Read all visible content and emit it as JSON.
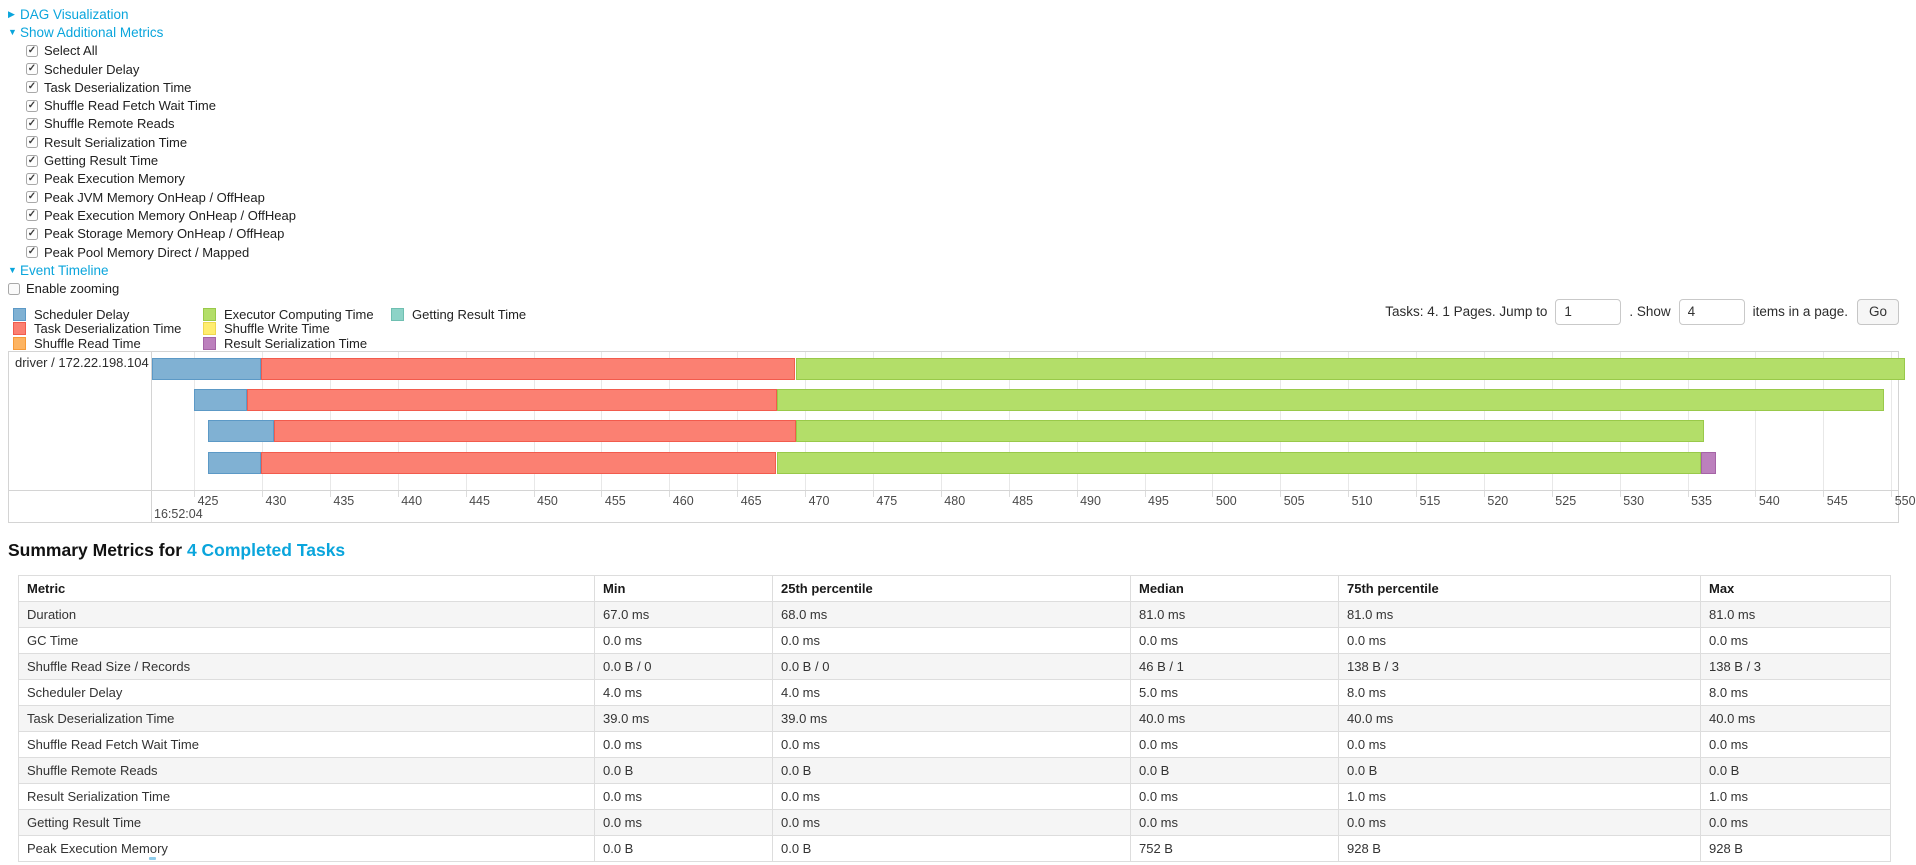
{
  "controls": {
    "dag": {
      "label": "DAG Visualization",
      "state": "collapsed"
    },
    "metrics_toggle": {
      "label": "Show Additional Metrics",
      "state": "expanded"
    },
    "metric_checkboxes": [
      "Select All",
      "Scheduler Delay",
      "Task Deserialization Time",
      "Shuffle Read Fetch Wait Time",
      "Shuffle Remote Reads",
      "Result Serialization Time",
      "Getting Result Time",
      "Peak Execution Memory",
      "Peak JVM Memory OnHeap / OffHeap",
      "Peak Execution Memory OnHeap / OffHeap",
      "Peak Storage Memory OnHeap / OffHeap",
      "Peak Pool Memory Direct / Mapped"
    ],
    "metric_checkboxes_checked": true,
    "event_timeline": {
      "label": "Event Timeline",
      "state": "expanded"
    },
    "enable_zooming": {
      "label": "Enable zooming",
      "checked": false
    }
  },
  "legend": {
    "columns": [
      [
        {
          "key": "scheduler_delay",
          "label": "Scheduler Delay"
        },
        {
          "key": "task_deserialization",
          "label": "Task Deserialization Time"
        },
        {
          "key": "shuffle_read",
          "label": "Shuffle Read Time"
        }
      ],
      [
        {
          "key": "executor_computing",
          "label": "Executor Computing Time"
        },
        {
          "key": "shuffle_write",
          "label": "Shuffle Write Time"
        },
        {
          "key": "result_serialization",
          "label": "Result Serialization Time"
        }
      ],
      [
        {
          "key": "getting_result",
          "label": "Getting Result Time"
        }
      ]
    ]
  },
  "pagination": {
    "tasks_text": "Tasks: 4. 1 Pages. Jump to",
    "jump_value": "1",
    "show_label": ". Show",
    "show_value": "4",
    "suffix": "items in a page.",
    "go_label": "Go"
  },
  "chart_data": {
    "type": "timeline",
    "row_label": "driver / 172.22.198.104",
    "x_axis": {
      "window_ms": [
        421.9,
        550.5
      ],
      "ticks_ms": [
        425,
        430,
        435,
        440,
        445,
        450,
        455,
        460,
        465,
        470,
        475,
        480,
        485,
        490,
        495,
        500,
        505,
        510,
        515,
        520,
        525,
        530,
        535,
        540,
        545,
        550
      ],
      "major_label": "16:52:04",
      "units": "milliseconds within second 16:52:04"
    },
    "colors": {
      "scheduler_delay": {
        "fill": "#80B1D3",
        "border": "#5C99C6"
      },
      "task_deserialization": {
        "fill": "#FB8072",
        "border": "#F25B4D"
      },
      "shuffle_read": {
        "fill": "#FDB462",
        "border": "#F79A37"
      },
      "executor_computing": {
        "fill": "#B3DE69",
        "border": "#99C94A"
      },
      "shuffle_write": {
        "fill": "#FFED6F",
        "border": "#EFD84F"
      },
      "result_serialization": {
        "fill": "#BC80BD",
        "border": "#A564A6"
      },
      "getting_result": {
        "fill": "#8DD3C7",
        "border": "#6FBFB1"
      }
    },
    "tasks": [
      {
        "segments": [
          {
            "type": "scheduler_delay",
            "start": 421.9,
            "end": 429.9
          },
          {
            "type": "task_deserialization",
            "start": 429.9,
            "end": 469.3
          },
          {
            "type": "executor_computing",
            "start": 469.3,
            "end": 551.0
          }
        ]
      },
      {
        "segments": [
          {
            "type": "scheduler_delay",
            "start": 425.0,
            "end": 428.9
          },
          {
            "type": "task_deserialization",
            "start": 428.9,
            "end": 467.9
          },
          {
            "type": "executor_computing",
            "start": 467.9,
            "end": 549.5
          }
        ]
      },
      {
        "segments": [
          {
            "type": "scheduler_delay",
            "start": 426.0,
            "end": 430.9
          },
          {
            "type": "task_deserialization",
            "start": 430.9,
            "end": 469.3
          },
          {
            "type": "executor_computing",
            "start": 469.3,
            "end": 536.2
          }
        ]
      },
      {
        "segments": [
          {
            "type": "scheduler_delay",
            "start": 426.0,
            "end": 429.9
          },
          {
            "type": "task_deserialization",
            "start": 429.9,
            "end": 467.9
          },
          {
            "type": "executor_computing",
            "start": 467.9,
            "end": 536.0
          },
          {
            "type": "result_serialization",
            "start": 536.0,
            "end": 537.1
          }
        ]
      }
    ]
  },
  "summary": {
    "heading_prefix": "Summary Metrics for ",
    "heading_link": "4 Completed Tasks",
    "columns": [
      "Metric",
      "Min",
      "25th percentile",
      "Median",
      "75th percentile",
      "Max"
    ],
    "rows": [
      [
        "Duration",
        "67.0 ms",
        "68.0 ms",
        "81.0 ms",
        "81.0 ms",
        "81.0 ms"
      ],
      [
        "GC Time",
        "0.0 ms",
        "0.0 ms",
        "0.0 ms",
        "0.0 ms",
        "0.0 ms"
      ],
      [
        "Shuffle Read Size / Records",
        "0.0 B / 0",
        "0.0 B / 0",
        "46 B / 1",
        "138 B / 3",
        "138 B / 3"
      ],
      [
        "Scheduler Delay",
        "4.0 ms",
        "4.0 ms",
        "5.0 ms",
        "8.0 ms",
        "8.0 ms"
      ],
      [
        "Task Deserialization Time",
        "39.0 ms",
        "39.0 ms",
        "40.0 ms",
        "40.0 ms",
        "40.0 ms"
      ],
      [
        "Shuffle Read Fetch Wait Time",
        "0.0 ms",
        "0.0 ms",
        "0.0 ms",
        "0.0 ms",
        "0.0 ms"
      ],
      [
        "Shuffle Remote Reads",
        "0.0 B",
        "0.0 B",
        "0.0 B",
        "0.0 B",
        "0.0 B"
      ],
      [
        "Result Serialization Time",
        "0.0 ms",
        "0.0 ms",
        "0.0 ms",
        "1.0 ms",
        "1.0 ms"
      ],
      [
        "Getting Result Time",
        "0.0 ms",
        "0.0 ms",
        "0.0 ms",
        "0.0 ms",
        "0.0 ms"
      ],
      [
        "Peak Execution Memory",
        "0.0 B",
        "0.0 B",
        "752 B",
        "928 B",
        "928 B"
      ]
    ]
  }
}
